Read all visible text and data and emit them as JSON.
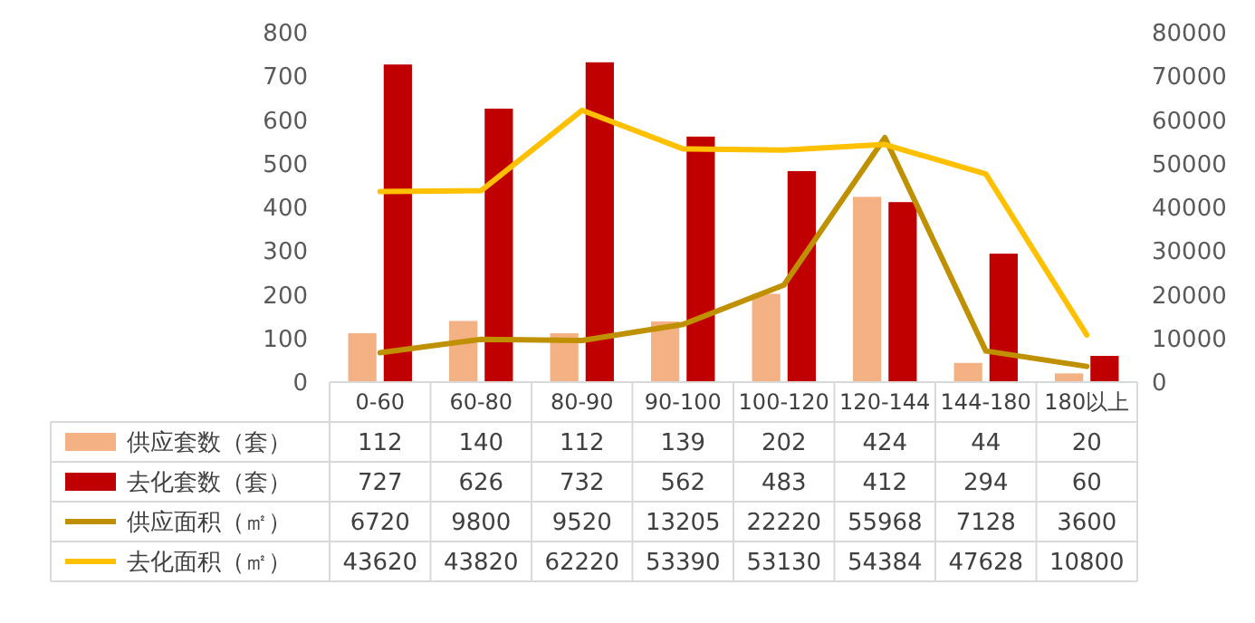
{
  "chart_data": {
    "type": "bar",
    "categories": [
      "0-60",
      "60-80",
      "80-90",
      "90-100",
      "100-120",
      "120-144",
      "144-180",
      "180以上"
    ],
    "series": [
      {
        "name": "供应套数（套）",
        "color": "#f4b183",
        "values": [
          112,
          140,
          112,
          139,
          202,
          424,
          44,
          20
        ]
      },
      {
        "name": "去化套数（套）",
        "color": "#c00000",
        "values": [
          727,
          626,
          732,
          562,
          483,
          412,
          294,
          60
        ]
      },
      {
        "name": "供应面积（㎡）",
        "type": "line",
        "axis": "y2",
        "color": "#bf9000",
        "values": [
          6720,
          9800,
          9520,
          13205,
          22220,
          55968,
          7128,
          3600
        ]
      },
      {
        "name": "去化面积（㎡）",
        "type": "line",
        "axis": "y2",
        "color": "#ffc000",
        "values": [
          43620,
          43820,
          62220,
          53390,
          53130,
          54384,
          47628,
          10800
        ]
      }
    ],
    "ylim": [
      0,
      800
    ],
    "yticks": [
      0,
      100,
      200,
      300,
      400,
      500,
      600,
      700,
      800
    ],
    "y2lim": [
      0,
      80000
    ],
    "y2ticks": [
      0,
      10000,
      20000,
      30000,
      40000,
      50000,
      60000,
      70000,
      80000
    ],
    "data_labels": true,
    "legend": "bottom",
    "grid": false,
    "marker": "none",
    "line_style": "solid"
  }
}
